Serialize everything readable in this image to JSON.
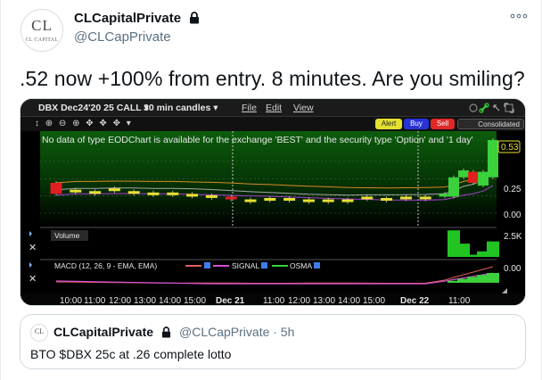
{
  "author": {
    "avatar_text": "CL",
    "avatar_subtext": "CL CAPITAL",
    "name": "CLCapitalPrivate",
    "handle": "@CLCapPrivate"
  },
  "icons": {
    "lock": "lock-icon",
    "more": "more-horizontal-icon"
  },
  "tweet_text": ".52 now +100% from entry. 8 minutes. Are you smiling?",
  "chart": {
    "symbol_label": "DBX Dec24'20 25 CALL ▾",
    "period_label": "30 min candles ▾",
    "menu": [
      "File",
      "Edit",
      "View"
    ],
    "tool_glyphs": "↕ ⊕ ⊖ ⊕ ✥ ✥ ✥ ▾",
    "buttons": {
      "alert": "Alert",
      "buy": "Buy",
      "sell": "Sell",
      "consolidated": "Consolidated"
    },
    "message": "No data of type EODChart is available for the exchange 'BEST' and the security type 'Option' and '1 day'",
    "price_labels": {
      "last": "0.53",
      "mid": "0.25",
      "zero": "0.00"
    },
    "volume_label": "Volume",
    "volume_axis": "2.5K",
    "macd_label": "MACD  (12, 26, 9 - EMA, EMA)",
    "macd_signal_label": "SIGNAL",
    "macd_osma_label": "OSMA",
    "macd_axis": "0.00",
    "time_labels": [
      "10:00",
      "11:00",
      "12:00",
      "13:00",
      "14:00",
      "15:00",
      "Dec 21",
      "11:00",
      "12:00",
      "13:00",
      "14:00",
      "15:00",
      "Dec 22",
      "11:00"
    ],
    "colors": {
      "up": "#3ad13a",
      "down": "#e02020",
      "flat": "#e8e033",
      "price_line": "#a8a8a8",
      "ma_orange": "#d88a2a",
      "ma_purple": "#a83fd0",
      "volume": "#22c422"
    }
  },
  "chart_data": {
    "type": "candlestick",
    "title": "DBX Dec24'20 25 CALL",
    "ylim": [
      0,
      0.53
    ],
    "last_price": 0.53,
    "x_ticks": [
      "10:00",
      "11:00",
      "12:00",
      "13:00",
      "14:00",
      "15:00",
      "Dec 21",
      "11:00",
      "12:00",
      "13:00",
      "14:00",
      "15:00",
      "Dec 22",
      "11:00"
    ],
    "candles": [
      {
        "open": 0.22,
        "close": 0.14,
        "dir": "down"
      },
      {
        "open": 0.17,
        "close": 0.16,
        "dir": "flat"
      },
      {
        "open": 0.16,
        "close": 0.15,
        "dir": "flat"
      },
      {
        "open": 0.18,
        "close": 0.16,
        "dir": "flat"
      },
      {
        "open": 0.16,
        "close": 0.15,
        "dir": "flat"
      },
      {
        "open": 0.15,
        "close": 0.14,
        "dir": "flat"
      },
      {
        "open": 0.15,
        "close": 0.15,
        "dir": "flat"
      },
      {
        "open": 0.14,
        "close": 0.12,
        "dir": "flat"
      },
      {
        "open": 0.13,
        "close": 0.12,
        "dir": "flat"
      },
      {
        "open": 0.12,
        "close": 0.1,
        "dir": "down"
      },
      {
        "open": 0.1,
        "close": 0.1,
        "dir": "flat"
      },
      {
        "open": 0.1,
        "close": 0.11,
        "dir": "flat"
      },
      {
        "open": 0.11,
        "close": 0.1,
        "dir": "flat"
      },
      {
        "open": 0.1,
        "close": 0.1,
        "dir": "flat"
      },
      {
        "open": 0.1,
        "close": 0.1,
        "dir": "flat"
      },
      {
        "open": 0.09,
        "close": 0.1,
        "dir": "flat"
      },
      {
        "open": 0.12,
        "close": 0.11,
        "dir": "flat"
      },
      {
        "open": 0.11,
        "close": 0.1,
        "dir": "flat"
      },
      {
        "open": 0.11,
        "close": 0.12,
        "dir": "flat"
      },
      {
        "open": 0.12,
        "close": 0.11,
        "dir": "flat"
      },
      {
        "open": 0.12,
        "close": 0.14,
        "dir": "up"
      },
      {
        "open": 0.12,
        "close": 0.26,
        "dir": "up"
      },
      {
        "open": 0.26,
        "close": 0.31,
        "dir": "up"
      },
      {
        "open": 0.3,
        "close": 0.22,
        "dir": "down"
      },
      {
        "open": 0.2,
        "close": 0.3,
        "dir": "up"
      },
      {
        "open": 0.26,
        "close": 0.53,
        "dir": "up"
      }
    ],
    "volume": [
      0,
      0,
      0,
      0,
      0,
      0,
      0,
      0,
      0,
      0,
      0,
      0,
      0,
      0,
      0,
      0,
      0,
      0,
      0,
      0,
      0,
      2400,
      1200,
      200,
      500,
      1400
    ]
  },
  "quote": {
    "avatar_text": "CL",
    "name": "CLCapitalPrivate",
    "handle_time": "@CLCapPrivate · 5h",
    "text": "BTO $DBX 25c at .26 complete lotto"
  }
}
